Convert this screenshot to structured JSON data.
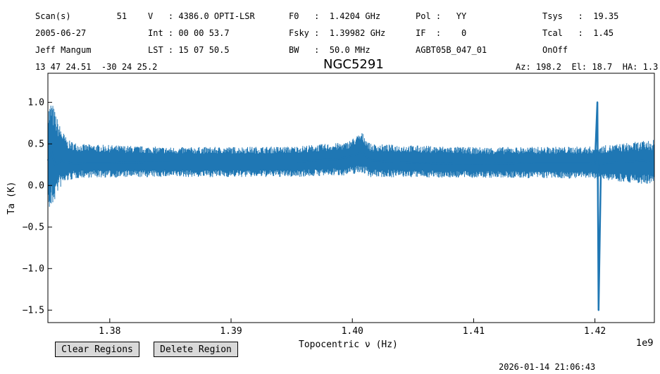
{
  "header": {
    "col1": [
      "Scan(s)         51",
      "2005-06-27",
      "Jeff Mangum"
    ],
    "col2": [
      "V   : 4386.0 OPTI-LSR",
      "Int : 00 00 53.7",
      "LST : 15 07 50.5"
    ],
    "col3": [
      "F0   :  1.4204 GHz",
      "Fsky :  1.39982 GHz",
      "BW   :  50.0 MHz"
    ],
    "col4": [
      "Pol :   YY",
      "IF  :    0",
      "AGBT05B_047_01"
    ],
    "col5": [
      "Tsys   :  19.35",
      "Tcal   :  1.45",
      "OnOff"
    ],
    "coords": "13 47 24.51  -30 24 25.2",
    "azel": "Az: 198.2  El: 18.7  HA: 1.3"
  },
  "chart_data": {
    "type": "line",
    "title": "NGC5291",
    "xlabel": "Topocentric ν (Hz)",
    "ylabel": "Ta (K)",
    "x_exponent_label": "1e9",
    "xlim": [
      1.3749,
      1.4249
    ],
    "ylim": [
      -1.65,
      1.35
    ],
    "xticks": [
      1.38,
      1.39,
      1.4,
      1.41,
      1.42
    ],
    "xtick_labels": [
      "1.38",
      "1.39",
      "1.40",
      "1.41",
      "1.42"
    ],
    "yticks": [
      1.0,
      0.5,
      0.0,
      -0.5,
      -1.0,
      -1.5
    ],
    "ytick_labels": [
      "1.0",
      "0.5",
      "0.0",
      "−0.5",
      "−1.0",
      "−1.5"
    ],
    "series": [
      {
        "color": "#1f77b4",
        "x": [
          1.3749,
          1.3752,
          1.3755,
          1.376,
          1.3765,
          1.377,
          1.378,
          1.38,
          1.385,
          1.39,
          1.395,
          1.399,
          1.4,
          1.4008,
          1.4015,
          1.405,
          1.41,
          1.415,
          1.4195,
          1.42,
          1.4202,
          1.4203,
          1.4205,
          1.421,
          1.424,
          1.4249
        ],
        "y": [
          0.3,
          0.4,
          0.25,
          0.3,
          0.28,
          0.26,
          0.27,
          0.27,
          0.28,
          0.28,
          0.28,
          0.32,
          0.36,
          0.4,
          0.3,
          0.27,
          0.26,
          0.27,
          0.27,
          0.26,
          1.0,
          -1.5,
          0.26,
          0.27,
          0.3,
          0.26
        ]
      }
    ],
    "noise_envelope": {
      "x": [
        1.3749,
        1.3752,
        1.3758,
        1.3765,
        1.3775,
        1.385,
        1.395,
        1.3995,
        1.4008,
        1.4015,
        1.41,
        1.42,
        1.4249
      ],
      "upper": [
        0.95,
        1.03,
        0.75,
        0.55,
        0.5,
        0.46,
        0.47,
        0.52,
        0.64,
        0.5,
        0.46,
        0.47,
        0.55
      ],
      "lower": [
        -0.35,
        -0.3,
        -0.05,
        0.05,
        0.09,
        0.1,
        0.1,
        0.12,
        0.15,
        0.1,
        0.09,
        0.08,
        0.0
      ]
    },
    "grid": false
  },
  "buttons": {
    "clear": "Clear Regions",
    "delete": "Delete Region"
  },
  "timestamp": "2026-01-14 21:06:43"
}
